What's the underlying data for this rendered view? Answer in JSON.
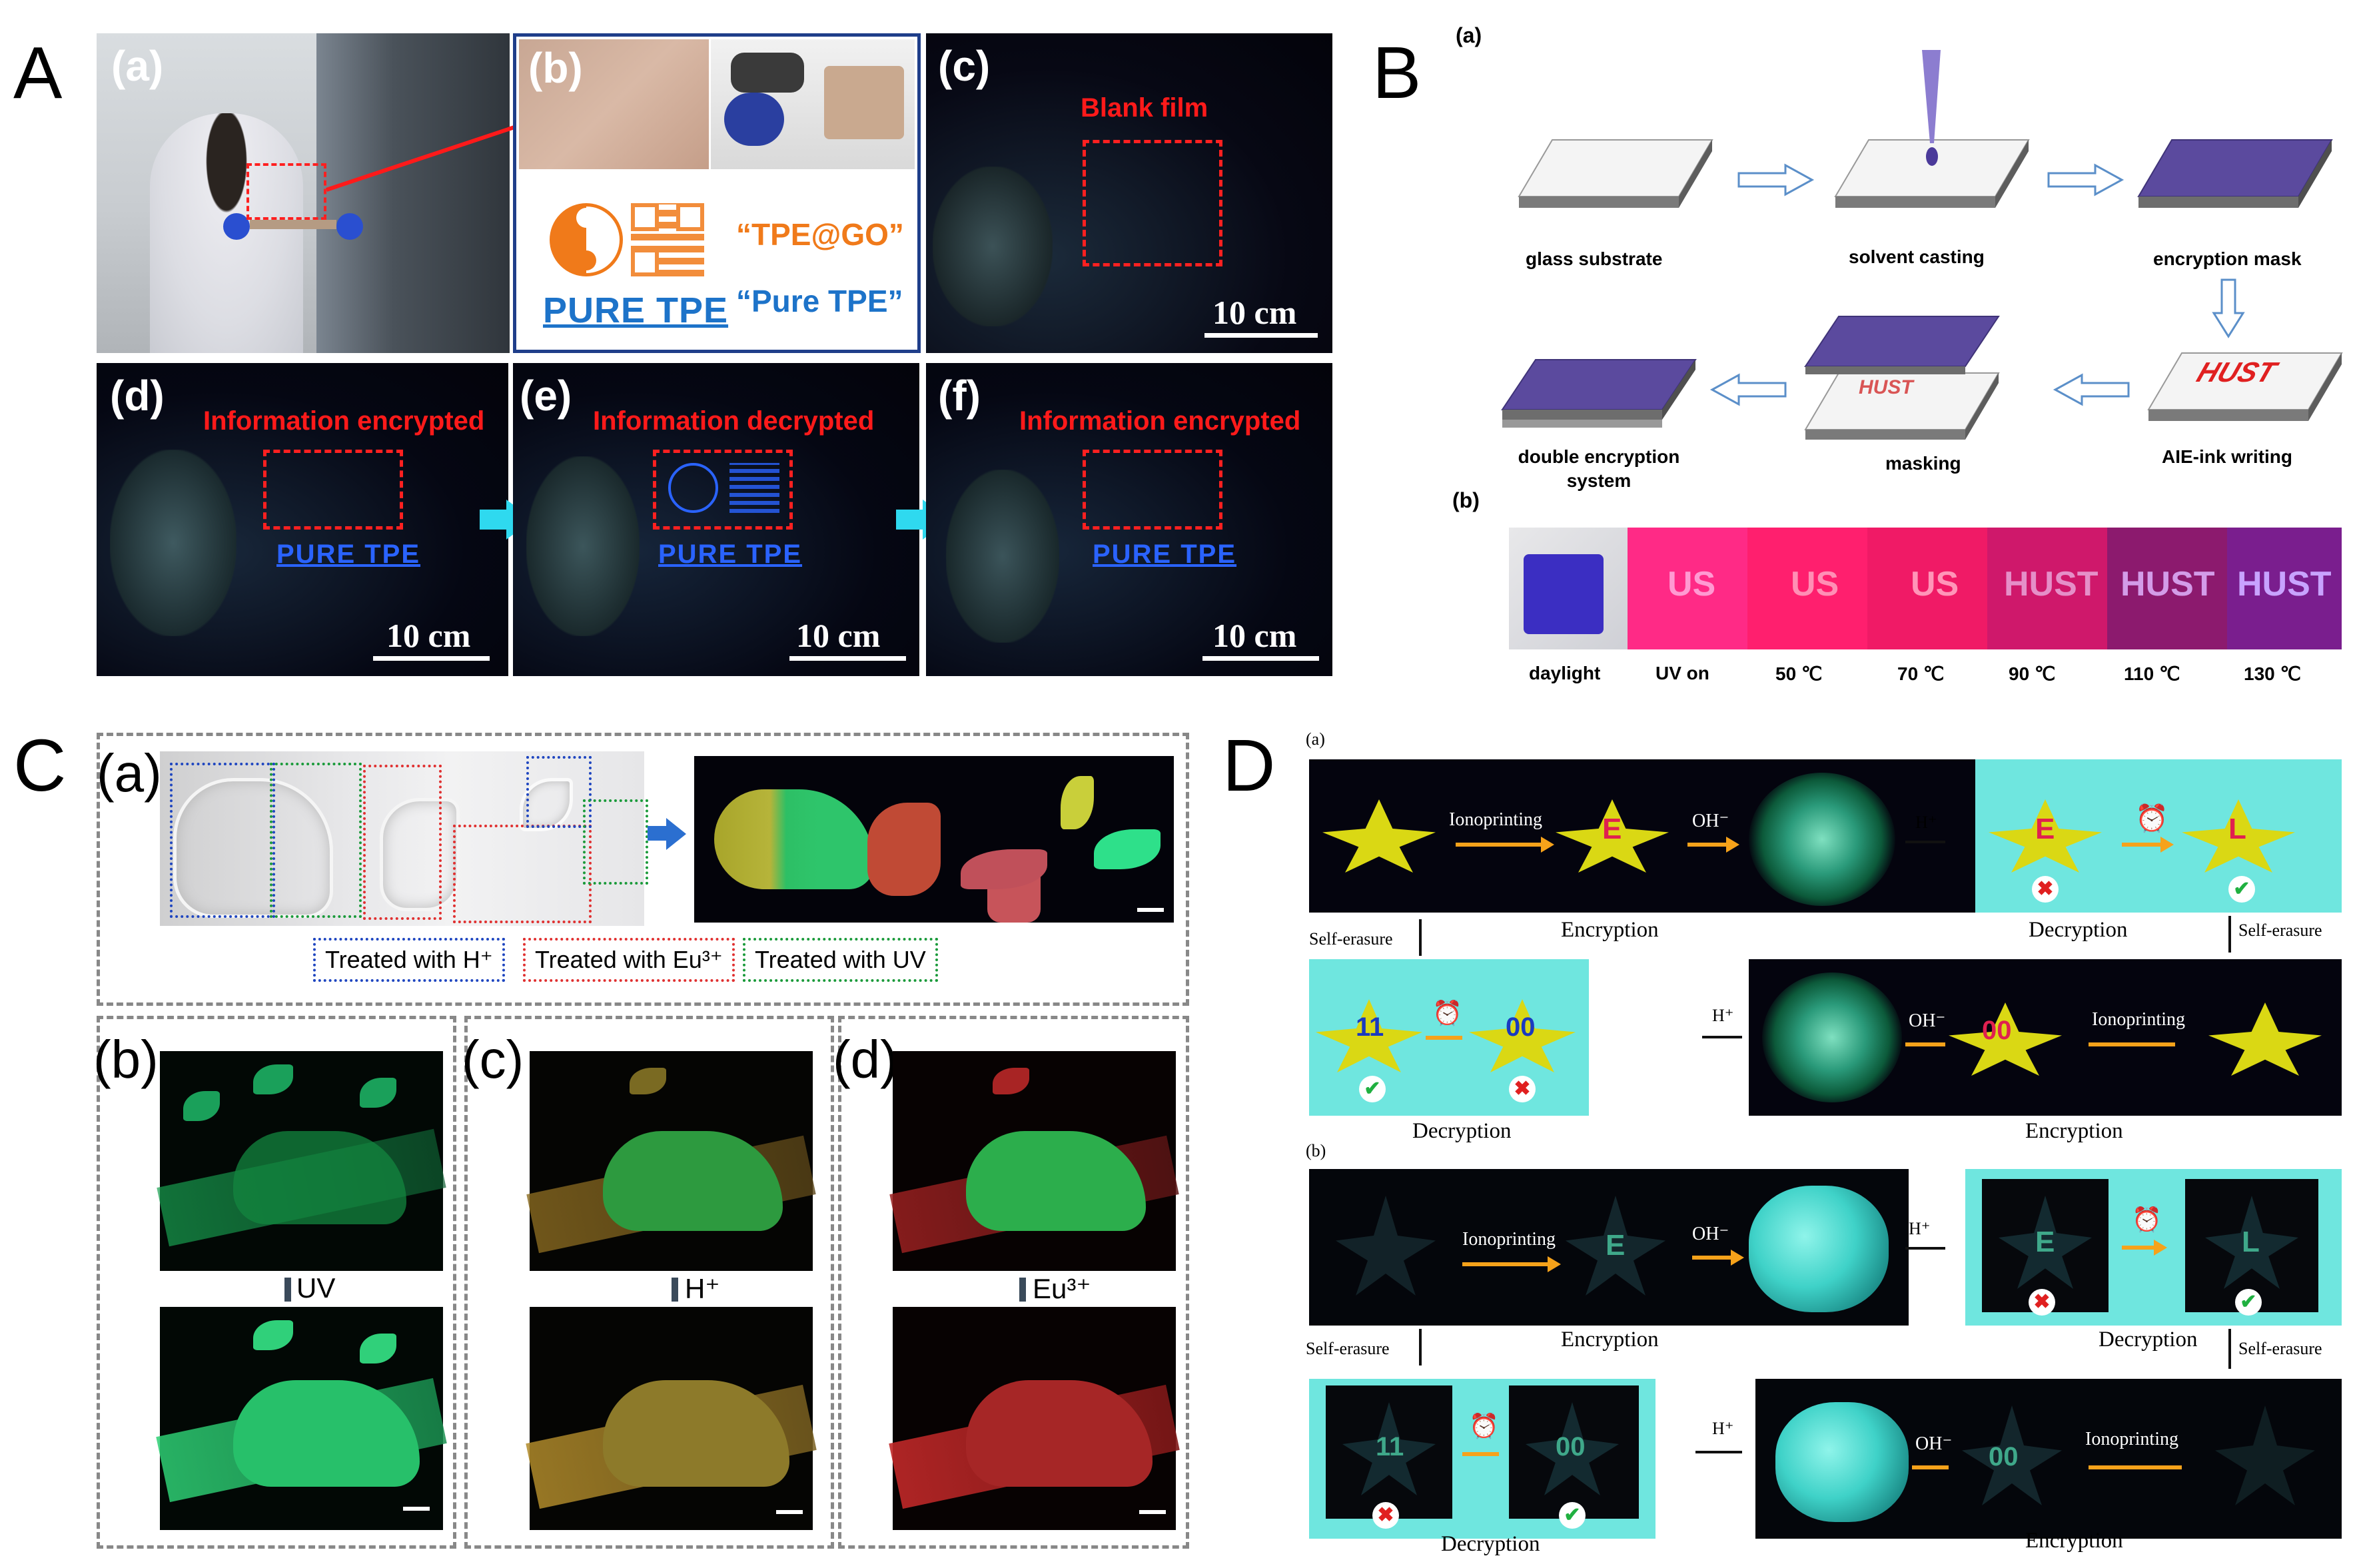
{
  "panels": {
    "A": {
      "letter": "A",
      "sub": {
        "a": "(a)",
        "b": "(b)",
        "c": "(c)",
        "d": "(d)",
        "e": "(e)",
        "f": "(f)"
      },
      "b_logo_text": "PURE TPE",
      "b_quote1": "“TPE@GO”",
      "b_quote2": "“Pure TPE”",
      "blank_film": "Blank film",
      "info_encrypted": "Information encrypted",
      "info_decrypted": "Information decrypted",
      "pure_tpe": "PURE TPE",
      "scale": "10 cm"
    },
    "B": {
      "letter": "B",
      "sub_a": "(a)",
      "sub_b": "(b)",
      "steps": [
        "glass substrate",
        "solvent casting",
        "encryption mask",
        "AIE-ink writing",
        "masking",
        "double encryption system"
      ],
      "ink_text": "HUST",
      "strip_labels": [
        "daylight",
        "UV on",
        "50 ℃",
        "70 ℃",
        "90 ℃",
        "110 ℃",
        "130 ℃"
      ],
      "strip_texts": [
        "",
        "US",
        "US",
        "US",
        "HUST",
        "HUST",
        "HUST"
      ]
    },
    "C": {
      "letter": "C",
      "sub": {
        "a": "(a)",
        "b": "(b)",
        "c": "(c)",
        "d": "(d)"
      },
      "treat_h": "Treated with H⁺",
      "treat_eu": "Treated with Eu³⁺",
      "treat_uv": "Treated with UV",
      "arrow_uv": "UV",
      "arrow_h": "H⁺",
      "arrow_eu": "Eu³⁺"
    },
    "D": {
      "letter": "D",
      "sub_a": "(a)",
      "sub_b": "(b)",
      "ionoprinting": "Ionoprinting",
      "oh": "OH⁻",
      "h": "H⁺",
      "encryption": "Encryption",
      "decryption": "Decryption",
      "self_erasure": "Self-erasure",
      "letters": {
        "E": "E",
        "L": "L",
        "zero": "00",
        "eleven": "11"
      }
    }
  },
  "colors": {
    "red": "#ff1a1a",
    "blue_text": "#2a63ff",
    "cyan": "#2fd9ef",
    "purple": "#5b4a9e",
    "orange": "#f6a21a",
    "teal_bg": "#6fe6df",
    "yellow_star": "#e6e01a",
    "dark_bg": "#04040e"
  }
}
